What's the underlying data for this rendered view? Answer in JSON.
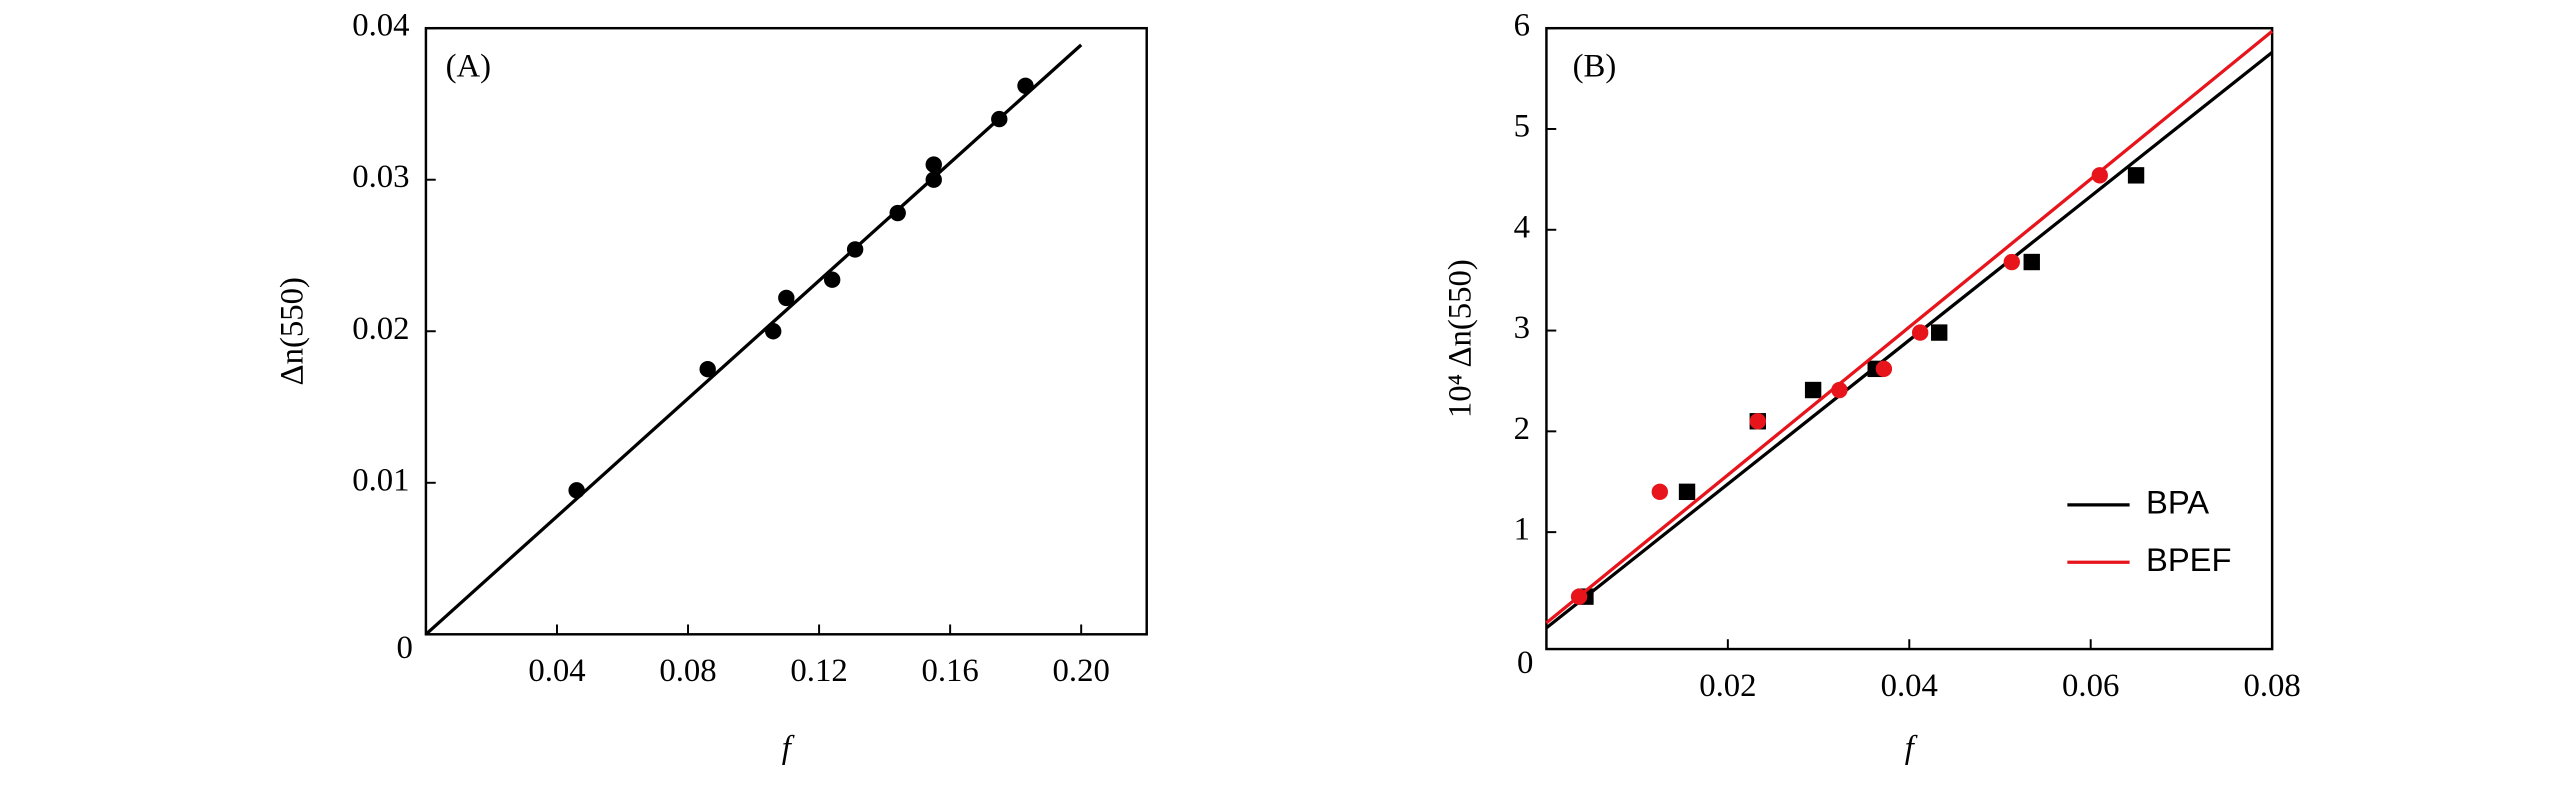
{
  "chart_data": [
    {
      "type": "scatter",
      "annotation": "(A)",
      "x_label": "f",
      "y_label": "Δn(550)",
      "xlim": [
        0,
        0.22
      ],
      "ylim": [
        0,
        0.04
      ],
      "xticks": [
        0,
        0.04,
        0.08,
        0.12,
        0.16,
        {
          "value": 0.2,
          "label": "0.20"
        }
      ],
      "yticks": [
        0.01,
        0.02,
        0.03,
        0.04
      ],
      "grid": false,
      "series": [
        {
          "color": "#000000",
          "marker": "circle",
          "x": [
            0.046,
            0.086,
            0.106,
            0.11,
            0.124,
            0.131,
            0.144,
            0.155,
            0.155,
            0.175,
            0.183
          ],
          "values": [
            0.0095,
            0.0175,
            0.02,
            0.0222,
            0.0234,
            0.0254,
            0.0278,
            0.031,
            0.03,
            0.034,
            0.0362
          ],
          "fit": {
            "x": [
              0,
              0.2
            ],
            "values": [
              0,
              0.0389
            ]
          }
        }
      ]
    },
    {
      "type": "scatter",
      "annotation": "(B)",
      "x_label": "f",
      "y_label": "10⁴ Δn(550)",
      "xlim": [
        0,
        0.08
      ],
      "ylim": [
        -0.16,
        6
      ],
      "xticks": [
        0,
        0.02,
        0.04,
        0.06,
        0.08
      ],
      "yticks": [
        1,
        2,
        3,
        4,
        5,
        6
      ],
      "grid": false,
      "legend": "lower right",
      "series": [
        {
          "name": "BPA",
          "color": "#000000",
          "marker": "square",
          "x": [
            0.0043,
            0.0155,
            0.0233,
            0.0294,
            0.0363,
            0.0433,
            0.0535,
            0.065
          ],
          "values": [
            0.36,
            1.4,
            2.1,
            2.41,
            2.62,
            2.98,
            3.68,
            4.54
          ],
          "fit": {
            "x": [
              0,
              0.08
            ],
            "values": [
              0.05,
              5.76
            ]
          }
        },
        {
          "name": "BPEF",
          "color": "#e8141b",
          "marker": "circle",
          "x": [
            0.0036,
            0.0125,
            0.0233,
            0.0323,
            0.0372,
            0.0412,
            0.0513,
            0.061
          ],
          "values": [
            0.36,
            1.4,
            2.1,
            2.41,
            2.62,
            2.98,
            3.68,
            4.54
          ],
          "fit": {
            "x": [
              0,
              0.08
            ],
            "values": [
              0.1,
              5.97
            ]
          }
        }
      ]
    }
  ]
}
